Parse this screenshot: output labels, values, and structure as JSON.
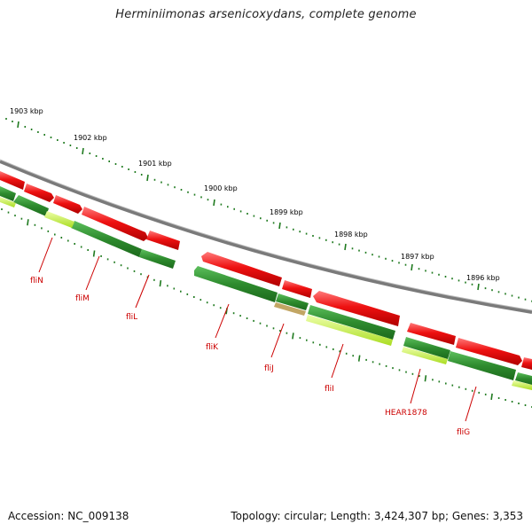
{
  "title": "Herminiimonas arsenicoxydans, complete genome",
  "footer": {
    "accession": "Accession: NC_009138",
    "summary": "Topology: circular; Length: 3,424,307 bp; Genes: 3,353"
  },
  "colors": {
    "forward_cds": "#ee1111",
    "reverse_cds": "#2e8b2e",
    "highlight_light": "#ccff44",
    "backbone": "#888888",
    "ticks": "#1f7a1f",
    "labels": "#cc0000"
  },
  "scale_labels": [
    {
      "text": "1903 kbp",
      "kbp": 1903
    },
    {
      "text": "1902 kbp",
      "kbp": 1902
    },
    {
      "text": "1901 kbp",
      "kbp": 1901
    },
    {
      "text": "1900 kbp",
      "kbp": 1900
    },
    {
      "text": "1899 kbp",
      "kbp": 1899
    },
    {
      "text": "1898 kbp",
      "kbp": 1898
    },
    {
      "text": "1897 kbp",
      "kbp": 1897
    },
    {
      "text": "1896 kbp",
      "kbp": 1896
    }
  ],
  "genes": [
    {
      "name": "fliN"
    },
    {
      "name": "fliM"
    },
    {
      "name": "fliL"
    },
    {
      "name": "fliK"
    },
    {
      "name": "fliJ"
    },
    {
      "name": "fliI"
    },
    {
      "name": "HEAR1878"
    },
    {
      "name": "fliG"
    }
  ]
}
